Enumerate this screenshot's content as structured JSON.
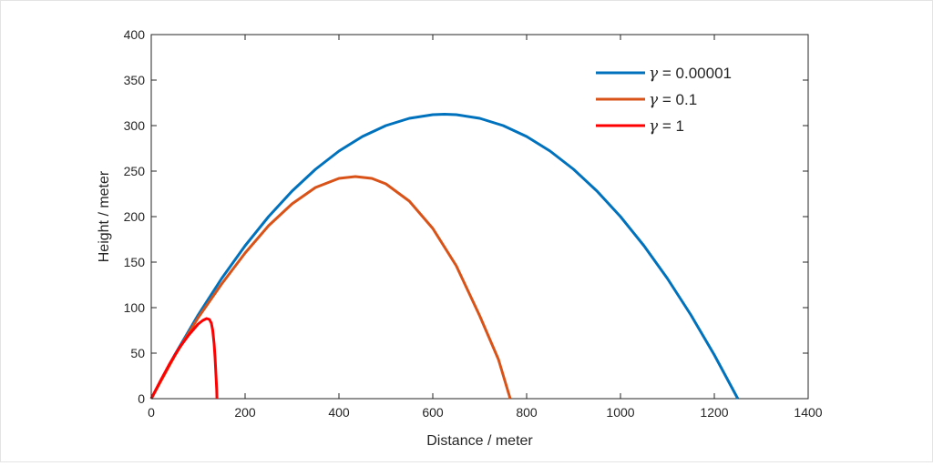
{
  "chart_data": {
    "type": "line",
    "title": "",
    "xlabel": "Distance / meter",
    "ylabel": "Height / meter",
    "xlim": [
      0,
      1400
    ],
    "ylim": [
      0,
      400
    ],
    "xticks": [
      0,
      200,
      400,
      600,
      800,
      1000,
      1200,
      1400
    ],
    "yticks": [
      0,
      50,
      100,
      150,
      200,
      250,
      300,
      350,
      400
    ],
    "legend_position": "top-right",
    "grid": false,
    "series": [
      {
        "name": "γ = 0.00001",
        "legend_symbol": "γ",
        "legend_value": " = 0.00001",
        "color": "#0072BD",
        "x": [
          0,
          50,
          100,
          150,
          200,
          250,
          300,
          350,
          400,
          450,
          500,
          550,
          600,
          625,
          650,
          700,
          750,
          800,
          850,
          900,
          950,
          1000,
          1050,
          1100,
          1150,
          1200,
          1250
        ],
        "y": [
          0,
          48,
          92,
          132,
          168,
          200,
          228,
          252,
          272,
          288,
          300,
          308,
          312,
          312.5,
          312,
          308,
          300,
          288,
          272,
          252,
          228,
          200,
          168,
          132,
          92,
          48,
          0
        ]
      },
      {
        "name": "γ = 0.1",
        "legend_symbol": "γ",
        "legend_value": " = 0.1",
        "color": "#D95319",
        "x": [
          0,
          50,
          100,
          150,
          200,
          250,
          300,
          350,
          400,
          435,
          470,
          500,
          550,
          600,
          650,
          700,
          740,
          765
        ],
        "y": [
          0,
          47,
          89,
          126,
          160,
          190,
          214,
          232,
          242,
          244,
          242,
          236,
          217,
          187,
          146,
          91,
          43,
          0
        ]
      },
      {
        "name": "γ = 1",
        "legend_symbol": "γ",
        "legend_value": " = 1",
        "color": "#FF0000",
        "x": [
          0,
          20,
          40,
          60,
          80,
          100,
          110,
          118,
          124,
          128,
          131,
          134,
          136,
          138,
          139.5,
          140
        ],
        "y": [
          0,
          20,
          39,
          56,
          70,
          82,
          86,
          88,
          87,
          83,
          75,
          60,
          45,
          25,
          10,
          0
        ]
      }
    ]
  }
}
